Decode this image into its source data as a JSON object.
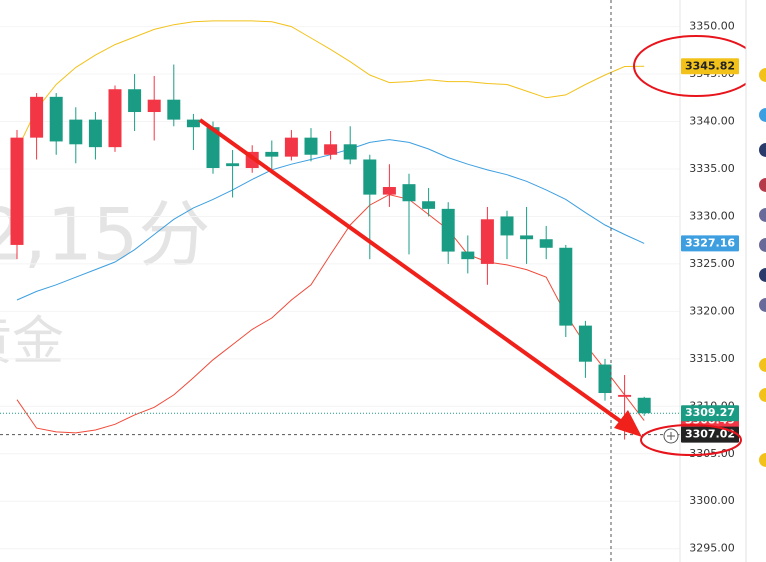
{
  "chart_data": {
    "type": "candlestick",
    "categories": [
      null,
      null,
      null,
      null,
      null,
      null,
      null,
      null,
      null,
      null,
      null,
      null,
      null,
      null,
      null,
      null,
      null,
      null,
      null,
      null,
      null,
      null,
      null,
      null,
      null,
      null,
      null,
      null,
      null,
      null,
      null,
      null,
      null
    ],
    "open": [
      3327.0,
      3338.3,
      3342.6,
      3340.2,
      3340.2,
      3337.3,
      3343.4,
      3341.0,
      3342.3,
      3340.2,
      3339.4,
      3335.6,
      3335.1,
      3336.8,
      3336.3,
      3338.3,
      3336.5,
      3337.6,
      3336.0,
      3332.3,
      3333.4,
      3331.6,
      3330.8,
      3326.3,
      3325.0,
      3330.0,
      3328.0,
      3327.6,
      3326.7,
      3318.5,
      3314.4,
      3311.0,
      3310.9
    ],
    "high": [
      3339.1,
      3343.0,
      3343.0,
      3341.5,
      3341.0,
      3343.8,
      3345.0,
      3344.8,
      3346.0,
      3340.8,
      3340.0,
      3337.0,
      3337.5,
      3338.0,
      3339.1,
      3339.3,
      3339.0,
      3339.5,
      3336.5,
      3335.5,
      3334.5,
      3333.0,
      3331.5,
      3328.0,
      3331.0,
      3330.6,
      3331.0,
      3329.0,
      3327.0,
      3319.0,
      3315.0,
      3313.3,
      3311.0
    ],
    "low": [
      3325.5,
      3336.0,
      3336.5,
      3335.6,
      3336.0,
      3336.8,
      3339.0,
      3338.0,
      3339.5,
      3337.0,
      3334.5,
      3332.0,
      3334.6,
      3335.0,
      3335.9,
      3335.8,
      3336.0,
      3335.5,
      3325.5,
      3331.0,
      3326.0,
      3330.0,
      3325.0,
      3324.0,
      3322.8,
      3325.5,
      3325.0,
      3325.5,
      3317.3,
      3313.0,
      3310.6,
      3306.5,
      3309.0
    ],
    "close": [
      3338.3,
      3342.6,
      3337.9,
      3337.6,
      3337.3,
      3343.4,
      3341.0,
      3342.3,
      3340.2,
      3339.4,
      3335.1,
      3335.3,
      3336.8,
      3336.3,
      3338.3,
      3336.5,
      3337.6,
      3336.0,
      3332.3,
      3333.1,
      3331.6,
      3330.8,
      3326.3,
      3325.5,
      3329.7,
      3328.0,
      3327.6,
      3326.7,
      3318.5,
      3314.7,
      3311.4,
      3311.2,
      3309.27
    ],
    "up_color": "#f23645",
    "down_color": "#1a9c84",
    "bands": [
      {
        "color": "#f2c21b",
        "values": [
          3337.0,
          3341.3,
          3343.9,
          3345.7,
          3347.0,
          3348.1,
          3348.9,
          3349.7,
          3350.2,
          3350.5,
          3350.6,
          3350.6,
          3350.6,
          3350.5,
          3350.0,
          3348.8,
          3347.6,
          3346.3,
          3344.9,
          3344.1,
          3344.2,
          3344.4,
          3344.2,
          3344.2,
          3344.0,
          3343.9,
          3343.2,
          3342.5,
          3342.8,
          3343.9,
          3344.9,
          3345.8,
          3345.82
        ]
      },
      {
        "color": "#3d9fe0",
        "values": [
          3321.2,
          3322.1,
          3322.8,
          3323.6,
          3324.4,
          3325.2,
          3326.5,
          3328.1,
          3329.7,
          3330.9,
          3331.8,
          3332.8,
          3333.9,
          3334.9,
          3335.5,
          3336.0,
          3336.5,
          3337.1,
          3337.8,
          3338.1,
          3337.8,
          3337.1,
          3336.2,
          3335.5,
          3334.9,
          3334.4,
          3333.7,
          3332.8,
          3331.8,
          3330.4,
          3329.1,
          3328.1,
          3327.16
        ]
      },
      {
        "color": "#f04a3a",
        "values": [
          3310.7,
          3307.7,
          3307.3,
          3307.2,
          3307.5,
          3308.1,
          3309.1,
          3309.9,
          3311.2,
          3313.0,
          3314.9,
          3316.5,
          3318.1,
          3319.3,
          3321.2,
          3322.8,
          3326.0,
          3329.1,
          3331.2,
          3332.3,
          3331.8,
          3330.2,
          3328.6,
          3326.0,
          3325.2,
          3324.9,
          3324.4,
          3323.6,
          3319.7,
          3316.5,
          3313.9,
          3311.2,
          3308.49
        ]
      }
    ],
    "price_labels": [
      {
        "value": 3345.82,
        "color": "#f2c21b",
        "text_color": "#222222"
      },
      {
        "value": 3327.16,
        "color": "#3d9fe0",
        "text_color": "#ffffff"
      },
      {
        "value": 3308.49,
        "color": "#f23645",
        "text_color": "#ffffff"
      },
      {
        "value": 3309.27,
        "color": "#1a9c84",
        "text_color": "#ffffff"
      },
      {
        "value": 3307.02,
        "color": "#222222",
        "text_color": "#ffffff"
      }
    ],
    "watermark": [
      "2,15分",
      "黄金"
    ],
    "ylim": [
      3293.6,
      3352.8
    ],
    "yticks": [
      {
        "value": 3295,
        "label": "3295.00"
      },
      {
        "value": 3300,
        "label": "3300.00"
      },
      {
        "value": 3305,
        "label": "3305.00"
      },
      {
        "value": 3310,
        "label": "3310.00"
      },
      {
        "value": 3315,
        "label": "3315.00"
      },
      {
        "value": 3320,
        "label": "3320.00"
      },
      {
        "value": 3325,
        "label": "3325.00"
      },
      {
        "value": 3330,
        "label": "3330.00"
      },
      {
        "value": 3335,
        "label": "3335.00"
      },
      {
        "value": 3340,
        "label": "3340.00"
      },
      {
        "value": 3345,
        "label": "3345.00"
      },
      {
        "value": 3350,
        "label": "3350.00"
      }
    ],
    "grid": true
  }
}
